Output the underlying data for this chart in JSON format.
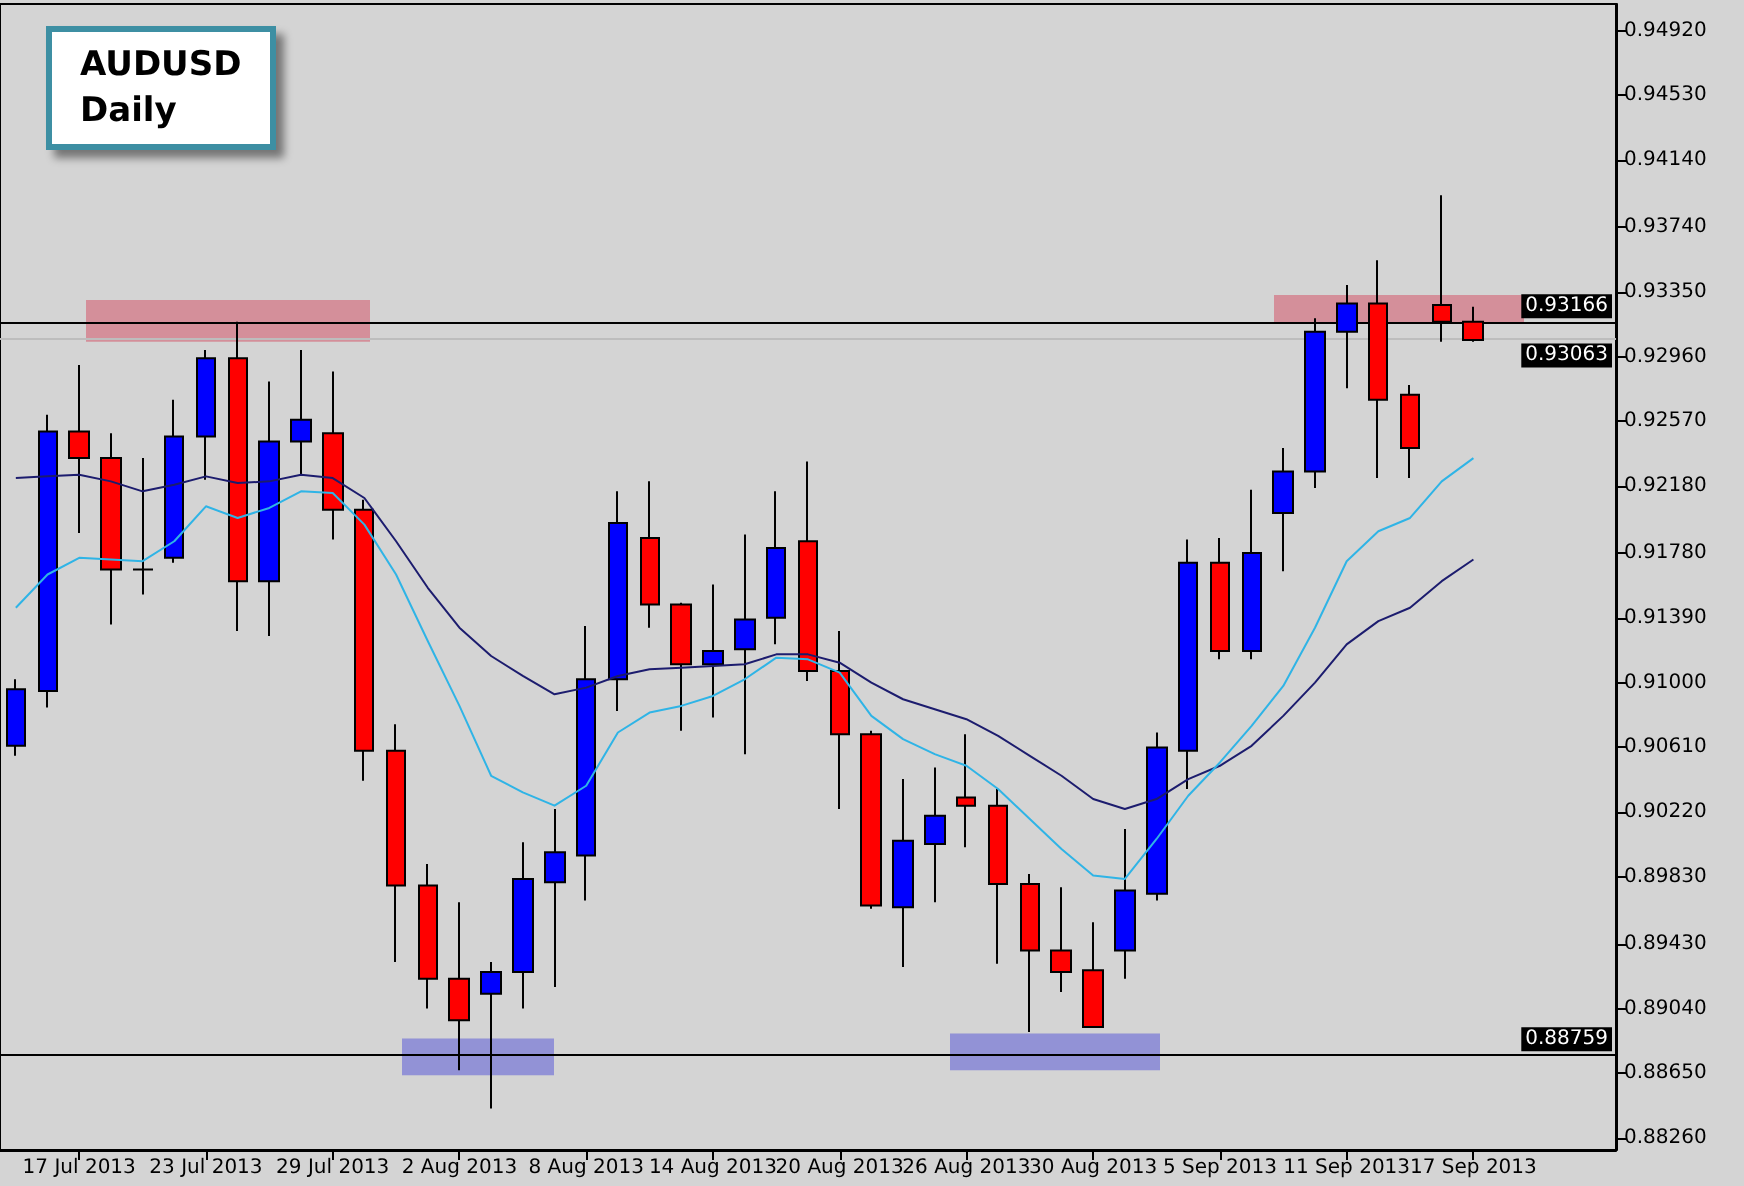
{
  "chart_data": {
    "type": "candlestick",
    "title": "AUDUSD",
    "subtitle": "Daily",
    "categories": [
      null,
      null,
      "17 Jul 2013",
      null,
      null,
      null,
      "23 Jul 2013",
      null,
      null,
      null,
      "29 Jul 2013",
      null,
      null,
      null,
      "2 Aug 2013",
      null,
      null,
      null,
      "8 Aug 2013",
      null,
      null,
      null,
      "14 Aug 2013",
      null,
      null,
      null,
      "20 Aug 2013",
      null,
      null,
      null,
      "26 Aug 2013",
      null,
      null,
      null,
      "30 Aug 2013",
      null,
      null,
      null,
      "5 Sep 2013",
      null,
      null,
      null,
      "11 Sep 2013",
      null,
      null,
      null,
      "17 Sep 2013"
    ],
    "ohlc": [
      [
        0.9062,
        0.9102,
        0.9056,
        0.9096
      ],
      [
        0.9095,
        0.9261,
        0.9085,
        0.9251
      ],
      [
        0.9251,
        0.9291,
        0.919,
        0.9235
      ],
      [
        0.9235,
        0.925,
        0.9135,
        0.9168
      ],
      [
        0.9168,
        0.9235,
        0.9153,
        0.9168
      ],
      [
        0.9175,
        0.927,
        0.9172,
        0.9248
      ],
      [
        0.9248,
        0.93,
        0.9222,
        0.9295
      ],
      [
        0.9295,
        0.9317,
        0.9131,
        0.9161
      ],
      [
        0.9161,
        0.9281,
        0.9128,
        0.9245
      ],
      [
        0.9245,
        0.93,
        0.9225,
        0.9258
      ],
      [
        0.925,
        0.9287,
        0.9186,
        0.9204
      ],
      [
        0.9204,
        0.921,
        0.9041,
        0.9059
      ],
      [
        0.9059,
        0.9075,
        0.8932,
        0.8978
      ],
      [
        0.8978,
        0.8991,
        0.8904,
        0.8922
      ],
      [
        0.8922,
        0.8968,
        0.8867,
        0.8897
      ],
      [
        0.8913,
        0.8932,
        0.8844,
        0.8926
      ],
      [
        0.8926,
        0.9004,
        0.8904,
        0.8982
      ],
      [
        0.898,
        0.9024,
        0.8917,
        0.8998
      ],
      [
        0.8996,
        0.9134,
        0.8969,
        0.9102
      ],
      [
        0.9102,
        0.9215,
        0.9083,
        0.9196
      ],
      [
        0.9187,
        0.9221,
        0.9133,
        0.9147
      ],
      [
        0.9147,
        0.9148,
        0.9071,
        0.9111
      ],
      [
        0.9111,
        0.9159,
        0.9079,
        0.9119
      ],
      [
        0.912,
        0.9189,
        0.9057,
        0.9138
      ],
      [
        0.9139,
        0.9215,
        0.9123,
        0.9181
      ],
      [
        0.9185,
        0.9233,
        0.9101,
        0.9107
      ],
      [
        0.9107,
        0.9131,
        0.9024,
        0.9069
      ],
      [
        0.9069,
        0.9071,
        0.8964,
        0.8966
      ],
      [
        0.8965,
        0.9042,
        0.8929,
        0.9005
      ],
      [
        0.9003,
        0.9049,
        0.8968,
        0.902
      ],
      [
        0.9031,
        0.9069,
        0.9001,
        0.9026
      ],
      [
        0.9026,
        0.9036,
        0.8931,
        0.8979
      ],
      [
        0.8979,
        0.8985,
        0.889,
        0.8939
      ],
      [
        0.8939,
        0.8977,
        0.8914,
        0.8926
      ],
      [
        0.8927,
        0.8956,
        0.8893,
        0.8893
      ],
      [
        0.8939,
        0.9012,
        0.8922,
        0.8975
      ],
      [
        0.8973,
        0.907,
        0.8969,
        0.9061
      ],
      [
        0.9059,
        0.9186,
        0.9036,
        0.9172
      ],
      [
        0.9172,
        0.9187,
        0.9114,
        0.9119
      ],
      [
        0.9119,
        0.9216,
        0.9114,
        0.9178
      ],
      [
        0.9202,
        0.9241,
        0.9167,
        0.9227
      ],
      [
        0.9227,
        0.9319,
        0.9217,
        0.9311
      ],
      [
        0.9311,
        0.9339,
        0.9277,
        0.9328
      ],
      [
        0.9328,
        0.9354,
        0.9223,
        0.927
      ],
      [
        0.9273,
        0.9279,
        0.9223,
        0.9241
      ],
      [
        0.9327,
        0.9393,
        0.9305,
        0.9317
      ],
      [
        0.9317,
        0.9326,
        0.9305,
        0.9306
      ]
    ],
    "colors": [
      "#0000ff",
      "#0000ff",
      "#ff0000",
      "#ff0000",
      "#000000",
      "#0000ff",
      "#0000ff",
      "#ff0000",
      "#0000ff",
      "#0000ff",
      "#ff0000",
      "#ff0000",
      "#ff0000",
      "#ff0000",
      "#ff0000",
      "#0000ff",
      "#0000ff",
      "#0000ff",
      "#0000ff",
      "#0000ff",
      "#ff0000",
      "#ff0000",
      "#0000ff",
      "#0000ff",
      "#0000ff",
      "#ff0000",
      "#ff0000",
      "#ff0000",
      "#0000ff",
      "#0000ff",
      "#ff0000",
      "#ff0000",
      "#ff0000",
      "#ff0000",
      "#ff0000",
      "#0000ff",
      "#0000ff",
      "#0000ff",
      "#ff0000",
      "#0000ff",
      "#0000ff",
      "#0000ff",
      "#0000ff",
      "#ff0000",
      "#ff0000",
      "#ff0000",
      "#ff0000"
    ],
    "series": [
      {
        "type": "line",
        "color": "#1c1c6e",
        "values": [
          0.9223,
          0.9224,
          0.9225,
          0.9221,
          0.9215,
          0.9219,
          0.9224,
          0.922,
          0.9221,
          0.9225,
          0.9223,
          0.9211,
          0.9185,
          0.9157,
          0.9133,
          0.9116,
          0.9104,
          0.9093,
          0.9097,
          0.9104,
          0.9108,
          0.9109,
          0.911,
          0.9111,
          0.9117,
          0.9117,
          0.9112,
          0.91,
          0.909,
          0.9084,
          0.9078,
          0.9068,
          0.9056,
          0.9044,
          0.903,
          0.9024,
          0.903,
          0.9042,
          0.905,
          0.9062,
          0.908,
          0.91,
          0.9123,
          0.9137,
          0.9145,
          0.9161,
          0.9174
        ]
      },
      {
        "type": "line",
        "color": "#2fb4e6",
        "values": [
          0.9145,
          0.9165,
          0.9175,
          0.9174,
          0.9173,
          0.9185,
          0.9206,
          0.9199,
          0.9205,
          0.9215,
          0.9214,
          0.9195,
          0.9165,
          0.9125,
          0.9086,
          0.9044,
          0.9034,
          0.9026,
          0.9038,
          0.907,
          0.9082,
          0.9086,
          0.9092,
          0.9102,
          0.9115,
          0.9114,
          0.9106,
          0.908,
          0.9066,
          0.9057,
          0.905,
          0.9036,
          0.9018,
          0.9,
          0.8984,
          0.8982,
          0.9006,
          0.9032,
          0.9052,
          0.9074,
          0.9098,
          0.9133,
          0.9173,
          0.9191,
          0.9199,
          0.9221,
          0.9235
        ]
      }
    ],
    "ylim": [
      0.8819,
      0.9508
    ],
    "yticks": [
      {
        "value": 0.9492,
        "label": "0.94920"
      },
      {
        "value": 0.9453,
        "label": "0.94530"
      },
      {
        "value": 0.9414,
        "label": "0.94140"
      },
      {
        "value": 0.9374,
        "label": "0.93740"
      },
      {
        "value": 0.9335,
        "label": "0.93350"
      },
      {
        "value": 0.9296,
        "label": "0.92960"
      },
      {
        "value": 0.9257,
        "label": "0.92570"
      },
      {
        "value": 0.9218,
        "label": "0.92180"
      },
      {
        "value": 0.9178,
        "label": "0.91780"
      },
      {
        "value": 0.9139,
        "label": "0.91390"
      },
      {
        "value": 0.91,
        "label": "0.91000"
      },
      {
        "value": 0.9061,
        "label": "0.90610"
      },
      {
        "value": 0.9022,
        "label": "0.90220"
      },
      {
        "value": 0.8983,
        "label": "0.89830"
      },
      {
        "value": 0.8943,
        "label": "0.89430"
      },
      {
        "value": 0.8904,
        "label": "0.89040"
      },
      {
        "value": 0.8865,
        "label": "0.88650"
      },
      {
        "value": 0.8826,
        "label": "0.88260"
      }
    ],
    "ref_lines": [
      {
        "axis": "y",
        "value": 0.93166,
        "label": "0.93166",
        "color": "#000000"
      },
      {
        "axis": "y",
        "value": 0.93063,
        "label": "0.93063",
        "color": "#bdbdbd"
      },
      {
        "axis": "y",
        "value": 0.88759,
        "label": "0.88759",
        "color": "#000000"
      }
    ],
    "bands": [
      {
        "axis": "y",
        "from": 0.9305,
        "to": 0.933,
        "color": "#d4828f"
      },
      {
        "axis": "y",
        "from": 0.9316,
        "to": 0.9333,
        "color": "#d4828f"
      },
      {
        "axis": "y",
        "from": 0.8864,
        "to": 0.8886,
        "color": "#8686d6"
      },
      {
        "axis": "y",
        "from": 0.8867,
        "to": 0.8889,
        "color": "#8686d6"
      }
    ],
    "grid": false
  }
}
